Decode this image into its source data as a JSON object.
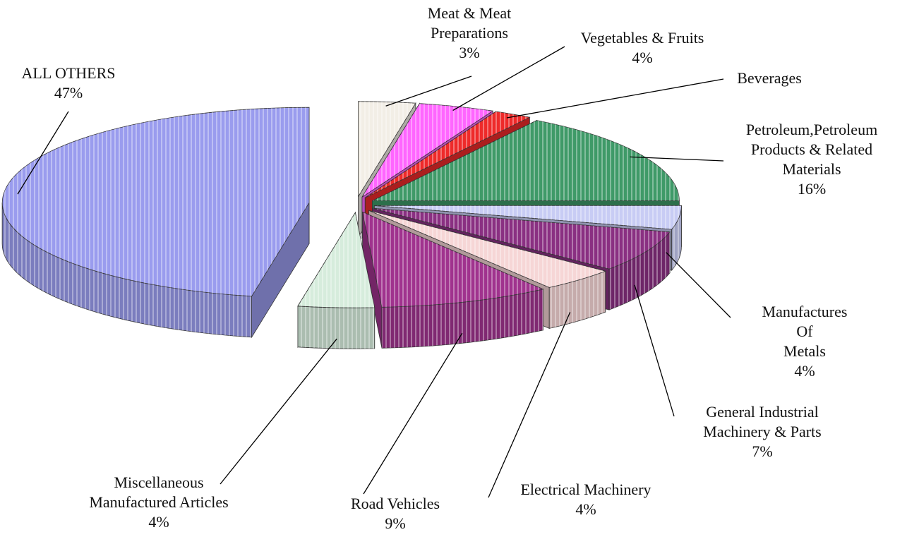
{
  "chart_data": {
    "type": "pie",
    "three_d": true,
    "exploded": true,
    "categories": [
      "Meat & Meat\nPreparations",
      "Vegetables & Fruits",
      "Beverages",
      "Petroleum,Petroleum\nProducts & Related\nMaterials",
      "Manufactures Of\nMetals",
      "General Industrial\nMachinery & Parts",
      "Electrical Machinery",
      "Road Vehicles",
      "Miscellaneous\nManufactured Articles",
      "ALL OTHERS"
    ],
    "values": [
      3,
      4,
      2,
      16,
      4,
      7,
      4,
      9,
      4,
      47
    ],
    "value_labels": [
      "3%",
      "4%",
      null,
      "16%",
      "4%",
      "7%",
      "4%",
      "9%",
      "4%",
      "47%"
    ],
    "colors": [
      "#f2eee6",
      "#ff66ff",
      "#ee2a2a",
      "#3f9a68",
      "#c8ccf4",
      "#8a3082",
      "#f6d6d6",
      "#a0338e",
      "#d6ecdc",
      "#9a9cee"
    ]
  }
}
